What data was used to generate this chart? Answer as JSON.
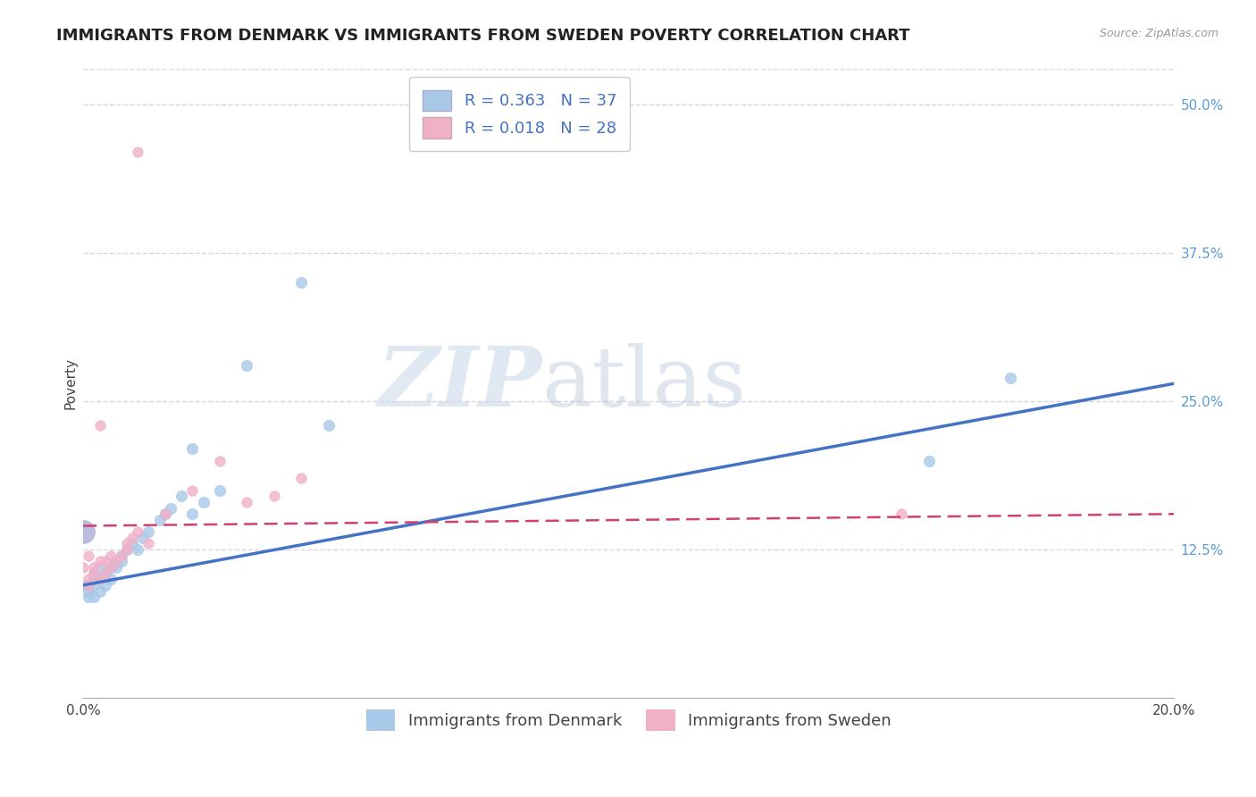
{
  "title": "IMMIGRANTS FROM DENMARK VS IMMIGRANTS FROM SWEDEN POVERTY CORRELATION CHART",
  "source": "Source: ZipAtlas.com",
  "xlabel": "",
  "ylabel": "Poverty",
  "xlim": [
    0.0,
    0.2
  ],
  "ylim": [
    0.0,
    0.53
  ],
  "yticks": [
    0.125,
    0.25,
    0.375,
    0.5
  ],
  "ytick_labels": [
    "12.5%",
    "25.0%",
    "37.5%",
    "50.0%"
  ],
  "xticks": [
    0.0,
    0.05,
    0.1,
    0.15,
    0.2
  ],
  "xtick_labels": [
    "0.0%",
    "",
    "",
    "",
    "20.0%"
  ],
  "legend_r1": "R = 0.363",
  "legend_n1": "N = 37",
  "legend_r2": "R = 0.018",
  "legend_n2": "N = 28",
  "legend_label1": "Immigrants from Denmark",
  "legend_label2": "Immigrants from Sweden",
  "color_denmark": "#A8C8E8",
  "color_sweden": "#F0B0C8",
  "color_line_denmark": "#4472C4",
  "color_line_sweden": "#D04070",
  "background_color": "#ffffff",
  "watermark_zip": "ZIP",
  "watermark_atlas": "atlas",
  "denmark_x": [
    0.0,
    0.001,
    0.001,
    0.001,
    0.002,
    0.002,
    0.002,
    0.002,
    0.003,
    0.003,
    0.003,
    0.004,
    0.004,
    0.005,
    0.005,
    0.006,
    0.006,
    0.007,
    0.007,
    0.008,
    0.009,
    0.01,
    0.011,
    0.012,
    0.014,
    0.015,
    0.016,
    0.018,
    0.02,
    0.022,
    0.025,
    0.03,
    0.04,
    0.02,
    0.155,
    0.17,
    0.045
  ],
  "denmark_y": [
    0.095,
    0.09,
    0.085,
    0.095,
    0.1,
    0.095,
    0.085,
    0.105,
    0.09,
    0.1,
    0.11,
    0.095,
    0.105,
    0.11,
    0.1,
    0.115,
    0.11,
    0.115,
    0.12,
    0.125,
    0.13,
    0.125,
    0.135,
    0.14,
    0.15,
    0.155,
    0.16,
    0.17,
    0.155,
    0.165,
    0.175,
    0.28,
    0.35,
    0.21,
    0.2,
    0.27,
    0.23
  ],
  "denmark_sizes": [
    80,
    80,
    80,
    80,
    80,
    80,
    80,
    80,
    80,
    80,
    80,
    80,
    80,
    80,
    80,
    80,
    80,
    80,
    80,
    80,
    80,
    80,
    80,
    80,
    80,
    80,
    80,
    80,
    80,
    80,
    80,
    100,
    120,
    90,
    100,
    110,
    90
  ],
  "sweden_x": [
    0.0,
    0.001,
    0.001,
    0.001,
    0.002,
    0.002,
    0.003,
    0.003,
    0.004,
    0.004,
    0.005,
    0.005,
    0.006,
    0.007,
    0.008,
    0.008,
    0.009,
    0.01,
    0.012,
    0.015,
    0.02,
    0.025,
    0.03,
    0.04,
    0.01,
    0.15,
    0.003,
    0.035
  ],
  "sweden_y": [
    0.11,
    0.1,
    0.095,
    0.12,
    0.105,
    0.11,
    0.1,
    0.115,
    0.105,
    0.115,
    0.11,
    0.12,
    0.115,
    0.12,
    0.13,
    0.125,
    0.135,
    0.14,
    0.13,
    0.155,
    0.175,
    0.2,
    0.165,
    0.185,
    0.46,
    0.155,
    0.23,
    0.17
  ],
  "denmark_big_size": 350,
  "marker_size_denmark": 80,
  "marker_size_sweden": 70,
  "title_fontsize": 13,
  "axis_label_fontsize": 11,
  "tick_fontsize": 11,
  "legend_fontsize": 13,
  "grid_color": "#BBBBCC",
  "grid_linestyle": "--",
  "grid_alpha": 0.6
}
